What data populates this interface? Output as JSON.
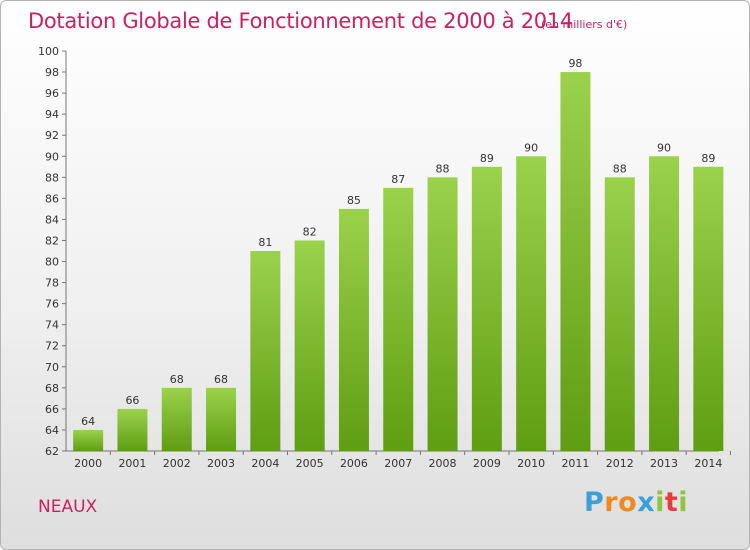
{
  "chart_data": {
    "type": "bar",
    "title": "Dotation Globale de Fonctionnement de 2000 à 2014",
    "subtitle": "(en milliers d'€)",
    "categories": [
      "2000",
      "2001",
      "2002",
      "2003",
      "2004",
      "2005",
      "2006",
      "2007",
      "2008",
      "2009",
      "2010",
      "2011",
      "2012",
      "2013",
      "2014"
    ],
    "values": [
      64,
      66,
      68,
      68,
      81,
      82,
      85,
      87,
      88,
      89,
      90,
      98,
      88,
      90,
      89
    ],
    "ylim": [
      62,
      100
    ],
    "yticks": [
      62,
      64,
      66,
      68,
      70,
      72,
      74,
      76,
      78,
      80,
      82,
      84,
      86,
      88,
      90,
      92,
      94,
      96,
      98,
      100
    ],
    "grid": false,
    "colors": {
      "bar_top": "#9bd24c",
      "bar_bottom": "#5f9d12",
      "title": "#cc2060"
    }
  },
  "footer": {
    "commune": "NEAUX",
    "brand": {
      "letters": [
        "P",
        "r",
        "o",
        "x",
        "i",
        "t",
        "i"
      ],
      "colors": [
        "#3aa0d8",
        "#f08a1e",
        "#f08a1e",
        "#3aa0d8",
        "#8cc63f",
        "#e83c3c",
        "#8cc63f"
      ]
    }
  }
}
